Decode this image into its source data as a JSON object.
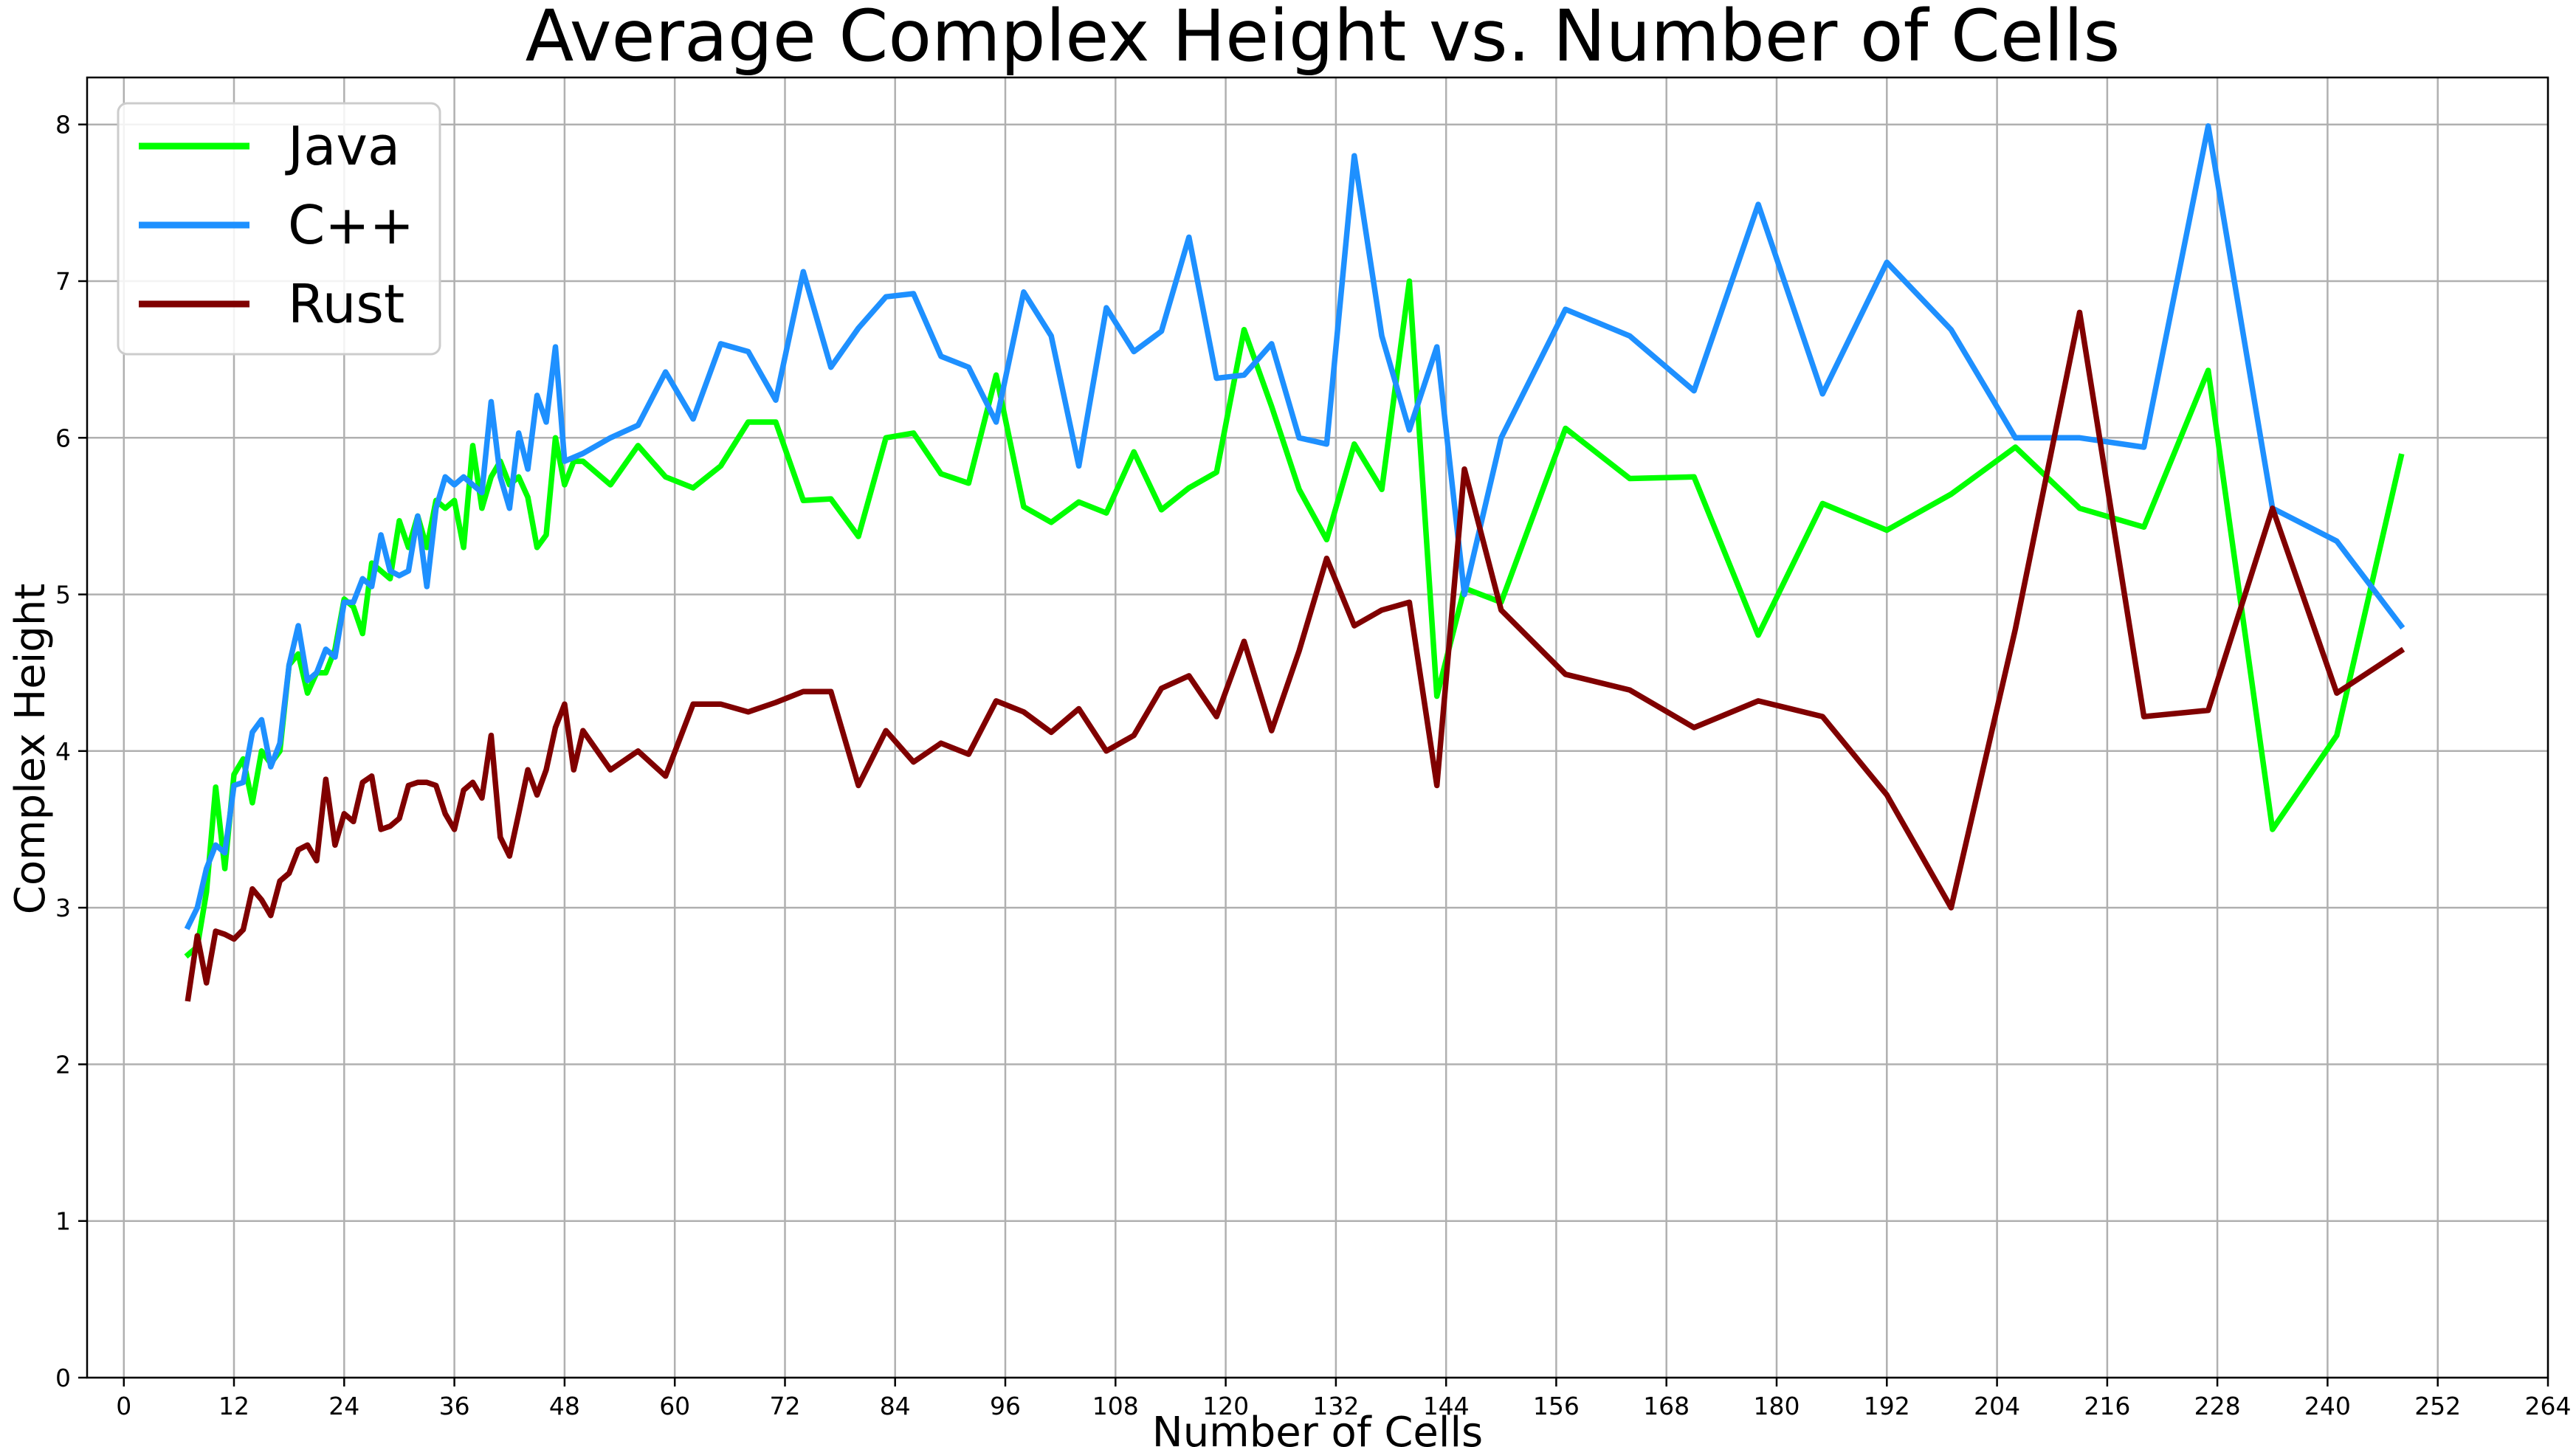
{
  "chart_data": {
    "type": "line",
    "title": "Average Complex Height vs. Number of Cells",
    "xlabel": "Number of Cells",
    "ylabel": "Complex Height",
    "xlim": [
      -4,
      264
    ],
    "ylim": [
      0,
      8.3
    ],
    "xticks": [
      0,
      12,
      24,
      36,
      48,
      60,
      72,
      84,
      96,
      108,
      120,
      132,
      144,
      156,
      168,
      180,
      192,
      204,
      216,
      228,
      240,
      252,
      264
    ],
    "yticks": [
      0,
      1,
      2,
      3,
      4,
      5,
      6,
      7,
      8
    ],
    "grid": true,
    "legend_position": "top-left",
    "series": [
      {
        "name": "Java",
        "color": "#00ff00",
        "x": [
          7,
          8,
          9,
          10,
          11,
          12,
          13,
          14,
          15,
          16,
          17,
          18,
          19,
          20,
          21,
          22,
          23,
          24,
          25,
          26,
          27,
          28,
          29,
          30,
          31,
          32,
          33,
          34,
          35,
          36,
          37,
          38,
          39,
          40,
          41,
          42,
          43,
          44,
          45,
          46,
          47,
          48,
          49,
          50,
          53,
          56,
          59,
          62,
          65,
          68,
          71,
          74,
          77,
          80,
          83,
          86,
          89,
          92,
          95,
          98,
          101,
          104,
          107,
          110,
          113,
          116,
          119,
          122,
          125,
          128,
          131,
          134,
          137,
          140,
          143,
          146,
          150,
          157,
          164,
          171,
          178,
          185,
          192,
          199,
          206,
          213,
          220,
          227,
          234,
          241,
          248
        ],
        "y": [
          2.7,
          2.75,
          3.1,
          3.77,
          3.25,
          3.85,
          3.95,
          3.67,
          4.0,
          3.92,
          4.0,
          4.55,
          4.62,
          4.37,
          4.5,
          4.5,
          4.65,
          4.97,
          4.92,
          4.75,
          5.2,
          5.15,
          5.1,
          5.47,
          5.3,
          5.5,
          5.3,
          5.6,
          5.55,
          5.6,
          5.3,
          5.95,
          5.55,
          5.75,
          5.85,
          5.7,
          5.75,
          5.62,
          5.3,
          5.38,
          6.0,
          5.7,
          5.85,
          5.85,
          5.7,
          5.95,
          5.75,
          5.68,
          5.82,
          6.1,
          6.1,
          5.6,
          5.61,
          5.37,
          6.0,
          6.03,
          5.77,
          5.71,
          6.4,
          5.56,
          5.46,
          5.59,
          5.52,
          5.91,
          5.54,
          5.68,
          5.78,
          6.69,
          6.2,
          5.67,
          5.35,
          5.96,
          5.67,
          7.0,
          4.35,
          5.04,
          4.95,
          6.06,
          5.74,
          5.75,
          4.74,
          5.58,
          5.41,
          5.64,
          5.94,
          5.55,
          5.43,
          6.43,
          3.5,
          4.1,
          5.88
        ]
      },
      {
        "name": "C++",
        "color": "#1e90ff",
        "x": [
          7,
          8,
          9,
          10,
          11,
          12,
          13,
          14,
          15,
          16,
          17,
          18,
          19,
          20,
          21,
          22,
          23,
          24,
          25,
          26,
          27,
          28,
          29,
          30,
          31,
          32,
          33,
          34,
          35,
          36,
          37,
          38,
          39,
          40,
          41,
          42,
          43,
          44,
          45,
          46,
          47,
          48,
          50,
          53,
          56,
          59,
          62,
          65,
          68,
          71,
          74,
          77,
          80,
          83,
          86,
          89,
          92,
          95,
          98,
          101,
          104,
          107,
          110,
          113,
          116,
          119,
          122,
          125,
          128,
          131,
          134,
          137,
          140,
          143,
          146,
          150,
          157,
          164,
          171,
          178,
          185,
          192,
          199,
          206,
          213,
          220,
          227,
          234,
          241,
          248
        ],
        "y": [
          2.88,
          3.0,
          3.25,
          3.4,
          3.35,
          3.78,
          3.8,
          4.12,
          4.2,
          3.9,
          4.05,
          4.55,
          4.8,
          4.45,
          4.5,
          4.65,
          4.6,
          4.95,
          4.95,
          5.1,
          5.05,
          5.38,
          5.15,
          5.12,
          5.15,
          5.5,
          5.05,
          5.55,
          5.75,
          5.7,
          5.75,
          5.7,
          5.65,
          6.23,
          5.75,
          5.55,
          6.03,
          5.8,
          6.27,
          6.1,
          6.58,
          5.85,
          5.9,
          6.0,
          6.08,
          6.42,
          6.12,
          6.6,
          6.55,
          6.24,
          7.06,
          6.45,
          6.7,
          6.9,
          6.92,
          6.52,
          6.45,
          6.1,
          6.93,
          6.65,
          5.82,
          6.83,
          6.55,
          6.68,
          7.28,
          6.38,
          6.4,
          6.6,
          6.0,
          5.96,
          7.8,
          6.65,
          6.05,
          6.58,
          5.0,
          6.0,
          6.82,
          6.65,
          6.3,
          7.49,
          6.28,
          7.12,
          6.69,
          6.0,
          6.0,
          5.94,
          7.99,
          5.55,
          5.34,
          4.8
        ]
      },
      {
        "name": "Rust",
        "color": "#800000",
        "x": [
          7,
          8,
          9,
          10,
          11,
          12,
          13,
          14,
          15,
          16,
          17,
          18,
          19,
          20,
          21,
          22,
          23,
          24,
          25,
          26,
          27,
          28,
          29,
          30,
          31,
          32,
          33,
          34,
          35,
          36,
          37,
          38,
          39,
          40,
          41,
          42,
          43,
          44,
          45,
          46,
          47,
          48,
          49,
          50,
          53,
          56,
          59,
          62,
          65,
          68,
          71,
          74,
          77,
          80,
          83,
          86,
          89,
          92,
          95,
          98,
          101,
          104,
          107,
          110,
          113,
          116,
          119,
          122,
          125,
          128,
          131,
          134,
          137,
          140,
          143,
          146,
          150,
          157,
          164,
          171,
          178,
          185,
          192,
          199,
          206,
          213,
          220,
          227,
          234,
          241,
          248
        ],
        "y": [
          2.42,
          2.82,
          2.52,
          2.85,
          2.83,
          2.8,
          2.86,
          3.12,
          3.05,
          2.95,
          3.17,
          3.22,
          3.37,
          3.4,
          3.3,
          3.82,
          3.4,
          3.6,
          3.55,
          3.8,
          3.84,
          3.5,
          3.52,
          3.57,
          3.78,
          3.8,
          3.8,
          3.78,
          3.6,
          3.5,
          3.75,
          3.8,
          3.7,
          4.1,
          3.45,
          3.33,
          3.6,
          3.88,
          3.72,
          3.88,
          4.15,
          4.3,
          3.88,
          4.13,
          3.88,
          4.0,
          3.84,
          4.3,
          4.3,
          4.25,
          4.31,
          4.38,
          4.38,
          3.78,
          4.13,
          3.93,
          4.05,
          3.98,
          4.32,
          4.25,
          4.12,
          4.27,
          4.0,
          4.1,
          4.4,
          4.48,
          4.22,
          4.7,
          4.13,
          4.64,
          5.23,
          4.8,
          4.9,
          4.95,
          3.78,
          5.8,
          4.9,
          4.49,
          4.39,
          4.15,
          4.32,
          4.22,
          3.72,
          3.0,
          4.78,
          6.8,
          4.22,
          4.26,
          5.55,
          4.37,
          4.64
        ]
      }
    ]
  }
}
